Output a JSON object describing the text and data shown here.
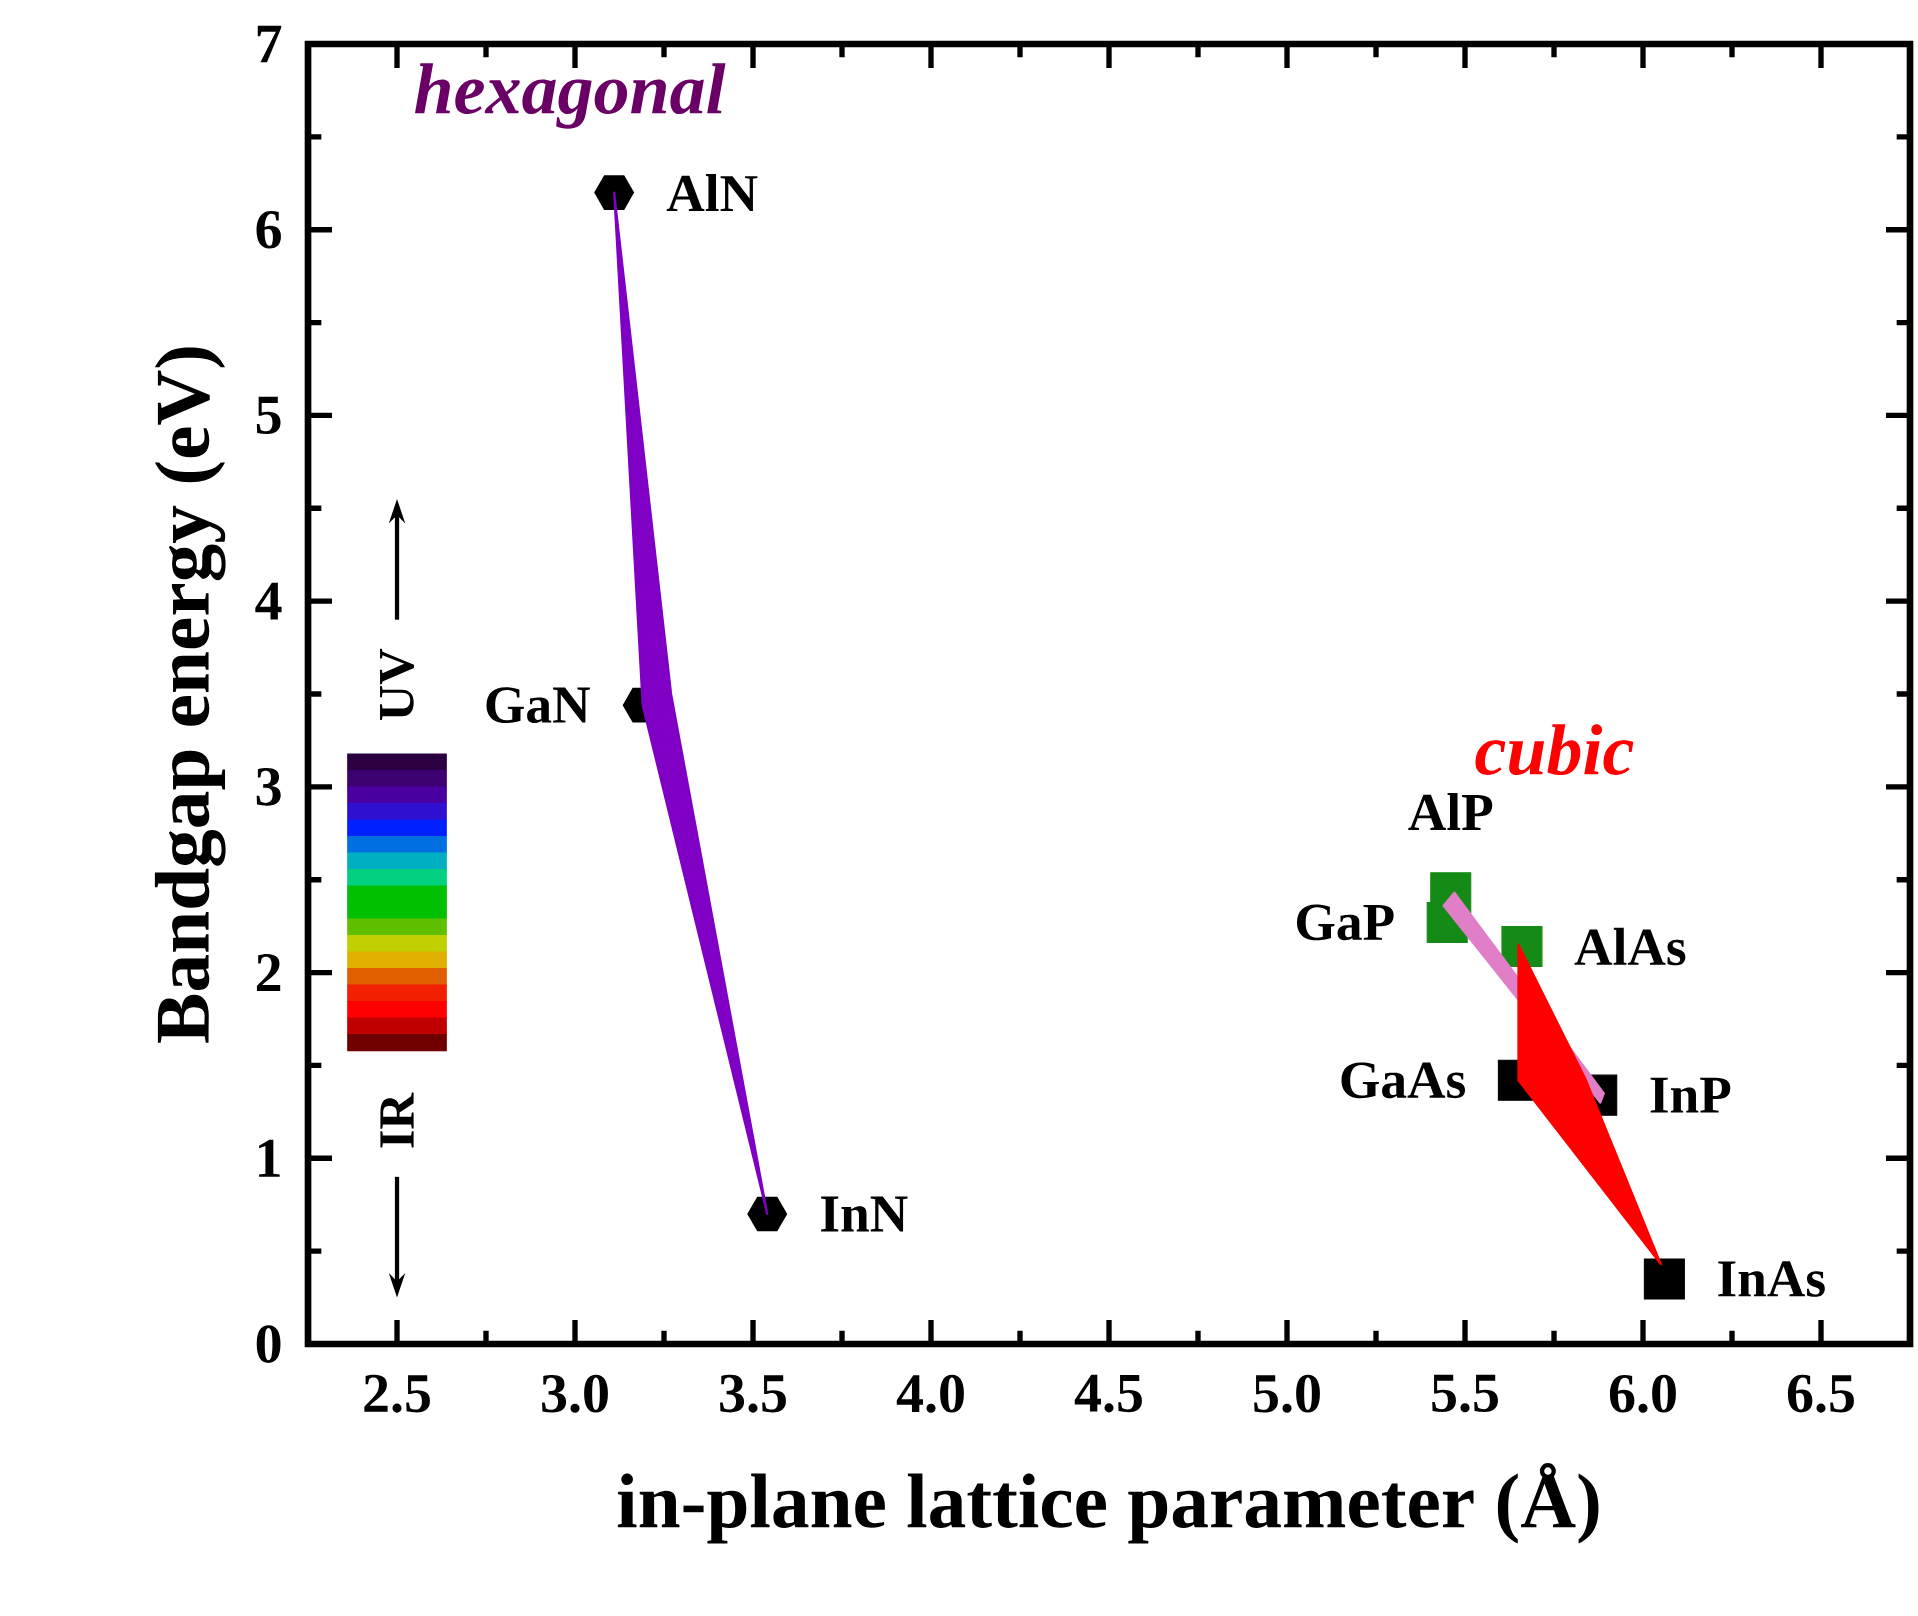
{
  "chart_data": {
    "type": "scatter",
    "xlabel": "in-plane lattice parameter (Å)",
    "ylabel": "Bandgap energy (eV)",
    "xlim": [
      2.25,
      6.75
    ],
    "ylim": [
      0,
      7
    ],
    "xticks": [
      2.5,
      {
        "value": 3,
        "label": "3.0"
      },
      3.5,
      {
        "value": 4,
        "label": "4.0"
      },
      4.5,
      {
        "value": 5,
        "label": "5.0"
      },
      5.5,
      {
        "value": 6,
        "label": "6.0"
      },
      6.5
    ],
    "yticks": [
      0,
      1,
      2,
      3,
      4,
      5,
      6,
      7
    ],
    "grid": false,
    "annotations": [
      "hexagonal",
      "cubic",
      "UV",
      "IR"
    ],
    "series": [
      {
        "name": "AlN",
        "color": "#000000",
        "x": [
          3.11
        ],
        "values": [
          6.2
        ]
      },
      {
        "name": "GaN",
        "color": "#000000",
        "x": [
          3.19
        ],
        "values": [
          3.44
        ]
      },
      {
        "name": "InN",
        "color": "#000000",
        "x": [
          3.54
        ],
        "values": [
          0.7
        ]
      },
      {
        "name": "AlP",
        "marker": "square",
        "color": "#168a16",
        "x": [
          5.46
        ],
        "values": [
          2.43
        ]
      },
      {
        "name": "GaP",
        "marker": "square",
        "color": "#168a16",
        "x": [
          5.45
        ],
        "values": [
          2.27
        ]
      },
      {
        "name": "AlAs",
        "marker": "square",
        "color": "#168a16",
        "x": [
          5.66
        ],
        "values": [
          2.14
        ]
      },
      {
        "name": "GaAs",
        "marker": "square",
        "color": "#000000",
        "x": [
          5.65
        ],
        "values": [
          1.42
        ]
      },
      {
        "name": "InP",
        "marker": "square",
        "color": "#000000",
        "x": [
          5.87
        ],
        "values": [
          1.34
        ]
      },
      {
        "name": "InAs",
        "marker": "square",
        "color": "#000000",
        "x": [
          6.06
        ],
        "values": [
          0.35
        ]
      },
      {
        "type": "area",
        "color": "#7f00c4",
        "x": [
          3.11,
          3.19,
          3.54,
          3.27
        ],
        "values": [
          6.2,
          3.44,
          0.7,
          3.5
        ]
      },
      {
        "type": "area",
        "color": "#e07fc8",
        "x": [
          5.44,
          5.47,
          5.89,
          5.88
        ],
        "values": [
          2.36,
          2.43,
          1.35,
          1.3
        ]
      },
      {
        "type": "area",
        "color": "#ff0000",
        "x": [
          5.65,
          5.65,
          6.05,
          5.84
        ],
        "values": [
          2.15,
          1.42,
          0.43,
          1.42
        ]
      }
    ]
  }
}
